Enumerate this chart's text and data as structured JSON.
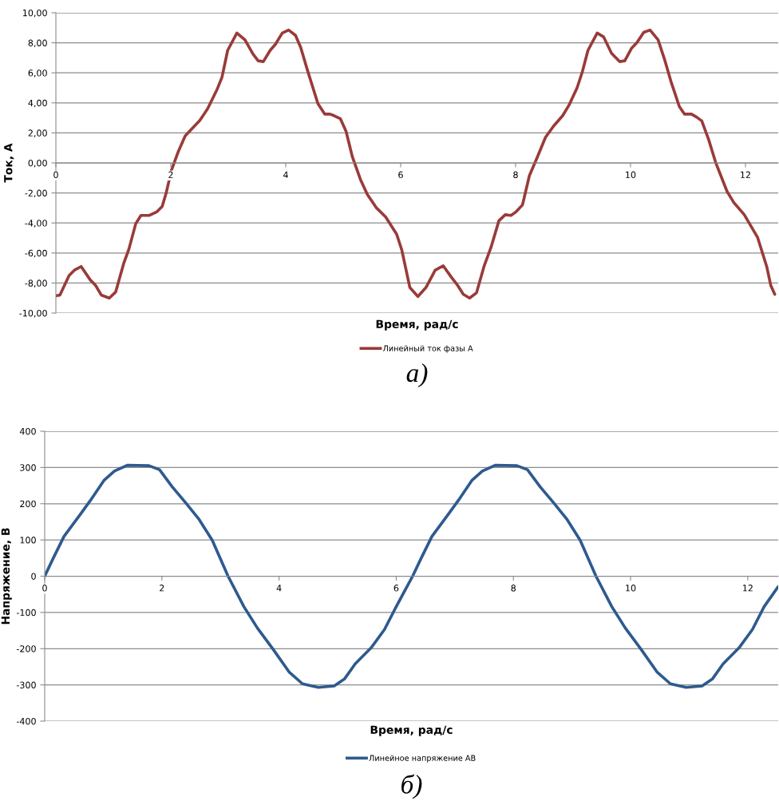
{
  "chart_data": [
    {
      "type": "line",
      "xlabel": "Время, рад/с",
      "ylabel": "Ток, А",
      "annotations": [
        "а)"
      ],
      "legend": "bottom",
      "grid": "y",
      "xlim": [
        0,
        12.57
      ],
      "xticks": [
        0,
        2,
        4,
        6,
        8,
        10,
        12
      ],
      "ylim": [
        -10,
        10
      ],
      "yticks": [
        {
          "value": 10,
          "label": "10,00"
        },
        {
          "value": 8,
          "label": "8,00"
        },
        {
          "value": 6,
          "label": "6,00"
        },
        {
          "value": 4,
          "label": "4,00"
        },
        {
          "value": 2,
          "label": "2,00"
        },
        {
          "value": 0,
          "label": "0,00"
        },
        {
          "value": -2,
          "label": "-2,00"
        },
        {
          "value": -4,
          "label": "-4,00"
        },
        {
          "value": -6,
          "label": "-6,00"
        },
        {
          "value": -8,
          "label": "-8,00"
        },
        {
          "value": -10,
          "label": "-10,00"
        }
      ],
      "series": [
        {
          "name": "Линейный ток фазы А",
          "color": "#993b39",
          "x": [
            0,
            0.07,
            0.23,
            0.32,
            0.44,
            0.6,
            0.69,
            0.79,
            0.93,
            1.04,
            1.18,
            1.27,
            1.39,
            1.48,
            1.62,
            1.76,
            1.85,
            1.92,
            2.01,
            2.13,
            2.25,
            2.36,
            2.5,
            2.64,
            2.8,
            2.89,
            2.99,
            3.15,
            3.29,
            3.43,
            3.52,
            3.61,
            3.73,
            3.82,
            3.94,
            4.05,
            4.17,
            4.26,
            4.38,
            4.56,
            4.68,
            4.77,
            4.84,
            4.95,
            5.05,
            5.16,
            5.3,
            5.42,
            5.58,
            5.74,
            5.93,
            6.02,
            6.16,
            6.3,
            6.44,
            6.6,
            6.74,
            6.88,
            6.99,
            7.09,
            7.2,
            7.32,
            7.45,
            7.57,
            7.71,
            7.82,
            7.92,
            8.01,
            8.12,
            8.24,
            8.38,
            8.52,
            8.66,
            8.82,
            8.93,
            9.07,
            9.16,
            9.26,
            9.42,
            9.53,
            9.67,
            9.81,
            9.9,
            10.02,
            10.11,
            10.23,
            10.34,
            10.48,
            10.6,
            10.71,
            10.85,
            10.94,
            11.06,
            11.15,
            11.24,
            11.36,
            11.48,
            11.68,
            11.8,
            11.98,
            12.21,
            12.37,
            12.44,
            12.51
          ],
          "values": [
            -8.85,
            -8.8,
            -7.5,
            -7.15,
            -6.9,
            -7.8,
            -8.15,
            -8.8,
            -9.0,
            -8.6,
            -6.7,
            -5.75,
            -4.05,
            -3.5,
            -3.5,
            -3.25,
            -2.9,
            -2.0,
            -0.5,
            0.75,
            1.8,
            2.25,
            2.8,
            3.6,
            4.85,
            5.7,
            7.5,
            8.65,
            8.2,
            7.25,
            6.8,
            6.75,
            7.5,
            7.9,
            8.65,
            8.85,
            8.5,
            7.7,
            6.15,
            3.95,
            3.25,
            3.25,
            3.15,
            2.95,
            2.1,
            0.4,
            -1.1,
            -2.1,
            -3.0,
            -3.6,
            -4.75,
            -5.8,
            -8.3,
            -8.9,
            -8.3,
            -7.15,
            -6.85,
            -7.6,
            -8.15,
            -8.75,
            -9.0,
            -8.65,
            -6.9,
            -5.65,
            -3.85,
            -3.45,
            -3.5,
            -3.25,
            -2.8,
            -0.85,
            0.4,
            1.7,
            2.45,
            3.15,
            3.85,
            5.0,
            6.05,
            7.5,
            8.65,
            8.4,
            7.3,
            6.75,
            6.8,
            7.65,
            8.0,
            8.7,
            8.85,
            8.2,
            6.8,
            5.35,
            3.75,
            3.25,
            3.25,
            3.05,
            2.8,
            1.55,
            0.05,
            -1.9,
            -2.65,
            -3.45,
            -4.95,
            -6.9,
            -8.15,
            -8.75
          ]
        }
      ]
    },
    {
      "type": "line",
      "xlabel": "Время, рад/с",
      "ylabel": "Напряжение, В",
      "annotations": [
        "б)"
      ],
      "legend": "bottom",
      "grid": "y",
      "xlim": [
        0,
        12.52
      ],
      "xticks": [
        0,
        2,
        4,
        6,
        8,
        10,
        12
      ],
      "ylim": [
        -400,
        400
      ],
      "yticks": [
        400,
        300,
        200,
        100,
        0,
        -100,
        -200,
        -300,
        -400
      ],
      "series": [
        {
          "name": "Линейное напряжение АВ",
          "color": "#2e5a8e",
          "x": [
            0,
            0.15,
            0.33,
            0.6,
            0.78,
            1.01,
            1.19,
            1.41,
            1.78,
            1.96,
            2.18,
            2.41,
            2.63,
            2.86,
            3.13,
            3.4,
            3.63,
            3.9,
            4.17,
            4.4,
            4.67,
            4.94,
            5.12,
            5.3,
            5.57,
            5.8,
            6.0,
            6.28,
            6.43,
            6.61,
            6.88,
            7.06,
            7.29,
            7.47,
            7.69,
            8.06,
            8.24,
            8.46,
            8.69,
            8.91,
            9.14,
            9.41,
            9.68,
            9.91,
            10.18,
            10.45,
            10.68,
            10.95,
            11.22,
            11.4,
            11.58,
            11.85,
            12.08,
            12.28,
            12.52
          ],
          "values": [
            0,
            51,
            110,
            169,
            209,
            264,
            290,
            306,
            305,
            294,
            246,
            202,
            158,
            99,
            0,
            -84,
            -143,
            -202,
            -264,
            -297,
            -307,
            -303,
            -283,
            -242,
            -198,
            -147,
            -84,
            0,
            51,
            110,
            169,
            209,
            264,
            290,
            306,
            305,
            294,
            246,
            202,
            158,
            99,
            0,
            -84,
            -143,
            -202,
            -264,
            -297,
            -307,
            -303,
            -283,
            -242,
            -198,
            -147,
            -84,
            -29
          ]
        }
      ]
    }
  ]
}
